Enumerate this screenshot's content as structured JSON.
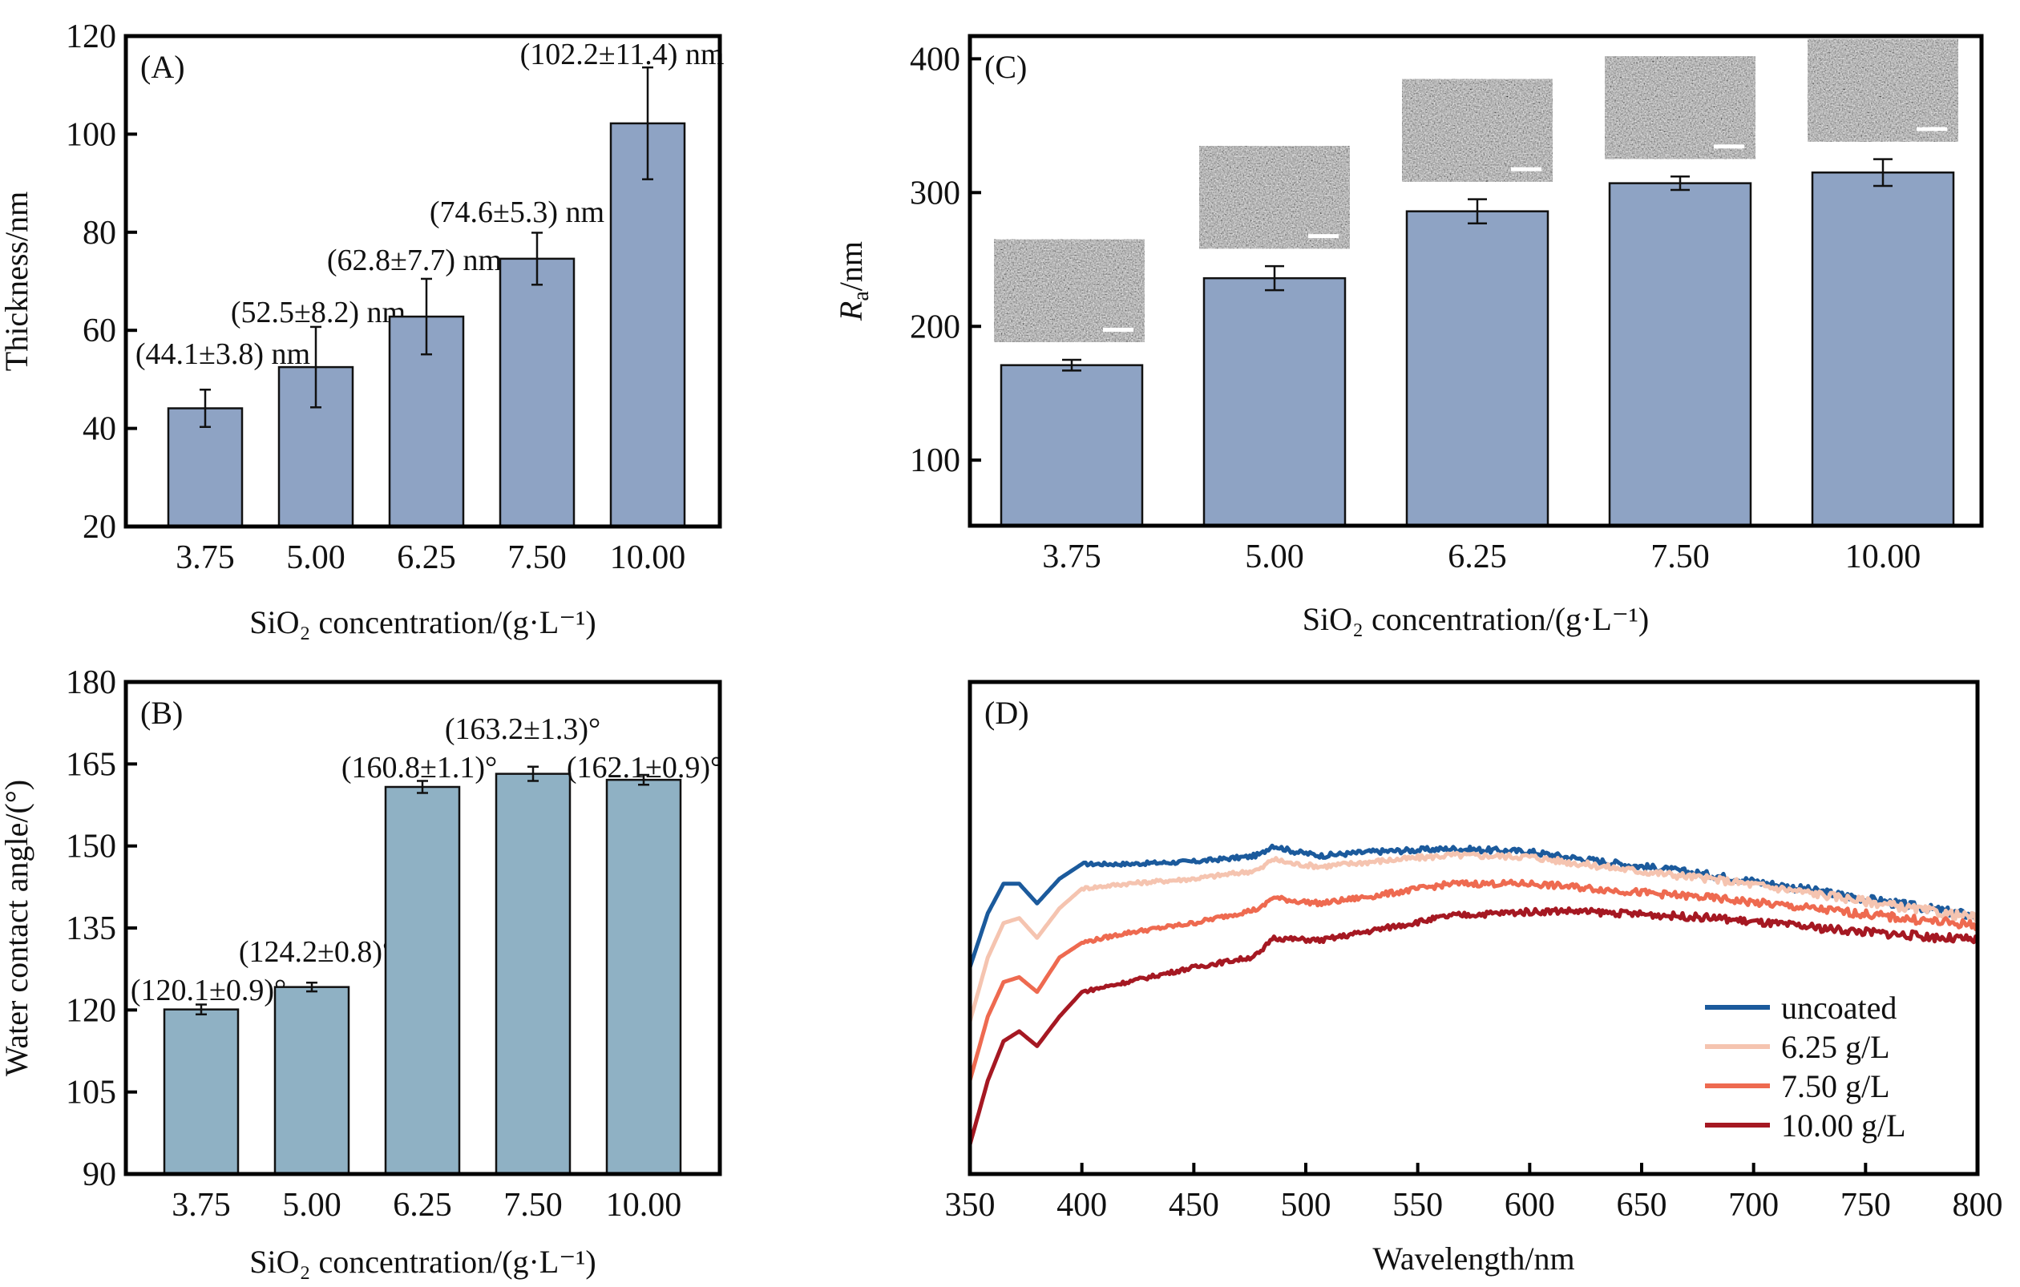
{
  "figure": {
    "panels": [
      "A",
      "B",
      "C",
      "D"
    ]
  },
  "chart_data": [
    {
      "id": "A",
      "type": "bar",
      "panel_tag": "(A)",
      "title": "",
      "xlabel": "SiO₂ concentration/(g·L⁻¹)",
      "ylabel": "Thickness/nm",
      "categories": [
        "3.75",
        "5.00",
        "6.25",
        "7.50",
        "10.00"
      ],
      "values": [
        44.1,
        52.5,
        62.8,
        74.6,
        102.2
      ],
      "errors": [
        3.8,
        8.2,
        7.7,
        5.3,
        11.4
      ],
      "data_labels": [
        "(44.1±3.8) nm",
        "(52.5±8.2) nm",
        "(62.8±7.7) nm",
        "(74.6±5.3) nm",
        "(102.2±11.4) nm"
      ],
      "ylim": [
        20,
        120
      ],
      "yticks": [
        20,
        40,
        60,
        80,
        100,
        120
      ],
      "bar_color": "#8ea3c4",
      "grid": false
    },
    {
      "id": "B",
      "type": "bar",
      "panel_tag": "(B)",
      "title": "",
      "xlabel": "SiO₂ concentration/(g·L⁻¹)",
      "ylabel": "Water contact angle/(°)",
      "categories": [
        "3.75",
        "5.00",
        "6.25",
        "7.50",
        "10.00"
      ],
      "values": [
        120.1,
        124.2,
        160.8,
        163.2,
        162.1
      ],
      "errors": [
        0.9,
        0.8,
        1.1,
        1.3,
        0.9
      ],
      "data_labels": [
        "(120.1±0.9)°",
        "(124.2±0.8)°",
        "(160.8±1.1)°",
        "(163.2±1.3)°",
        "(162.1±0.9)°"
      ],
      "ylim": [
        90,
        180
      ],
      "yticks": [
        90,
        105,
        120,
        135,
        150,
        165,
        180
      ],
      "bar_color": "#8fb1c4",
      "grid": false
    },
    {
      "id": "C",
      "type": "bar",
      "panel_tag": "(C)",
      "title": "",
      "xlabel": "SiO₂ concentration/(g·L⁻¹)",
      "ylabel_main": "R",
      "ylabel_sub": "a",
      "ylabel_rest": "/nm",
      "categories": [
        "3.75",
        "5.00",
        "6.25",
        "7.50",
        "10.00"
      ],
      "values": [
        171,
        236,
        286,
        307,
        315
      ],
      "errors": [
        4,
        9,
        9,
        5,
        10
      ],
      "insets": [
        "SEM image",
        "SEM image",
        "SEM image",
        "SEM image",
        "SEM image"
      ],
      "ylim": [
        51,
        417
      ],
      "yticks": [
        100,
        200,
        300,
        400
      ],
      "bar_color": "#8ea3c4",
      "grid": false
    },
    {
      "id": "D",
      "type": "line",
      "panel_tag": "(D)",
      "title": "",
      "xlabel": "Wavelength/nm",
      "ylabel": "",
      "y_units": "relative (unlabeled axis, fraction of axis range)",
      "xlim": [
        350,
        800
      ],
      "ylim": [
        0,
        1
      ],
      "xticks": [
        350,
        400,
        450,
        500,
        550,
        600,
        650,
        700,
        750,
        800
      ],
      "legend_position": "bottom-right",
      "grid": false,
      "x": [
        350,
        358,
        365,
        372,
        380,
        390,
        400,
        420,
        450,
        475,
        480,
        485,
        495,
        507,
        530,
        565,
        600,
        615,
        650,
        684,
        700,
        742,
        770,
        800
      ],
      "series": [
        {
          "name": "uncoated",
          "color": "#1b5a9c",
          "values": [
            0.42,
            0.53,
            0.59,
            0.59,
            0.55,
            0.6,
            0.63,
            0.63,
            0.635,
            0.645,
            0.65,
            0.668,
            0.655,
            0.647,
            0.655,
            0.661,
            0.655,
            0.645,
            0.625,
            0.606,
            0.595,
            0.565,
            0.545,
            0.524
          ]
        },
        {
          "name": "6.25 g/L",
          "color": "#f5c4b0",
          "values": [
            0.31,
            0.44,
            0.51,
            0.52,
            0.48,
            0.54,
            0.58,
            0.59,
            0.6,
            0.615,
            0.62,
            0.64,
            0.63,
            0.625,
            0.635,
            0.648,
            0.645,
            0.635,
            0.615,
            0.598,
            0.588,
            0.56,
            0.54,
            0.52
          ]
        },
        {
          "name": "7.50 g/L",
          "color": "#ee6a50",
          "values": [
            0.19,
            0.32,
            0.39,
            0.4,
            0.37,
            0.44,
            0.47,
            0.49,
            0.51,
            0.535,
            0.54,
            0.562,
            0.555,
            0.55,
            0.565,
            0.59,
            0.59,
            0.585,
            0.572,
            0.56,
            0.552,
            0.532,
            0.518,
            0.505
          ]
        },
        {
          "name": "10.00 g/L",
          "color": "#a51822",
          "values": [
            0.06,
            0.19,
            0.27,
            0.29,
            0.26,
            0.32,
            0.37,
            0.39,
            0.42,
            0.44,
            0.45,
            0.48,
            0.477,
            0.475,
            0.495,
            0.525,
            0.533,
            0.535,
            0.528,
            0.52,
            0.512,
            0.495,
            0.485,
            0.475
          ]
        }
      ]
    }
  ]
}
